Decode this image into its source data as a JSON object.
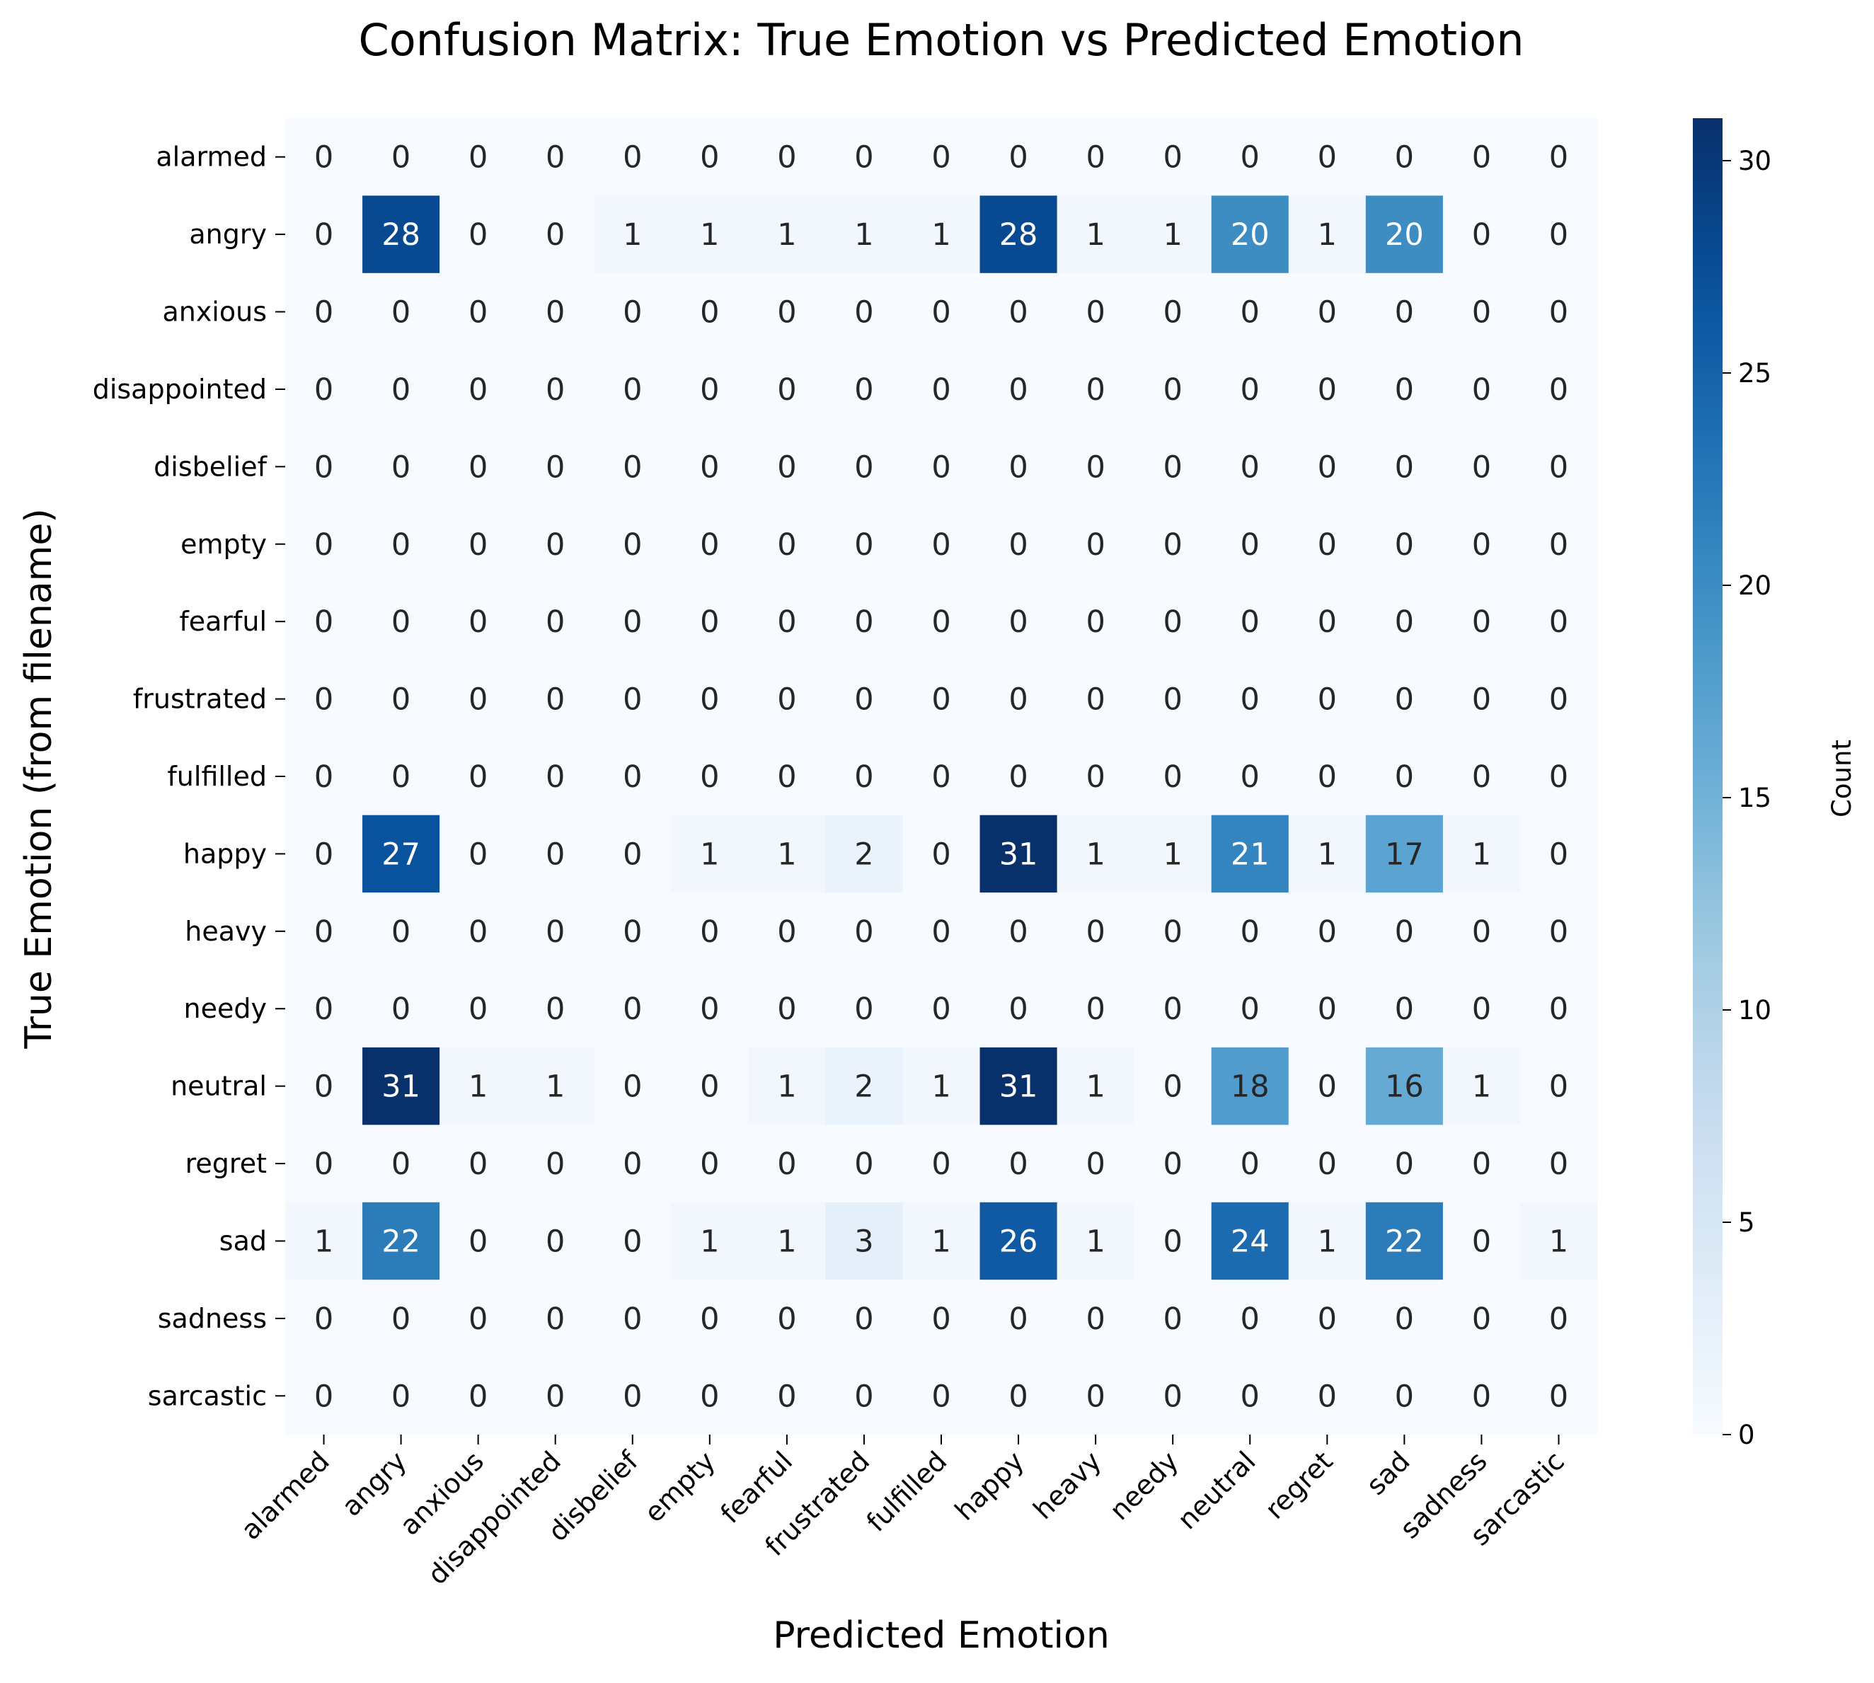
{
  "chart_data": {
    "type": "heatmap",
    "title": "Confusion Matrix: True Emotion vs Predicted Emotion",
    "xlabel": "Predicted Emotion",
    "ylabel": "True Emotion (from filename)",
    "x_categories": [
      "alarmed",
      "angry",
      "anxious",
      "disappointed",
      "disbelief",
      "empty",
      "fearful",
      "frustrated",
      "fulfilled",
      "happy",
      "heavy",
      "needy",
      "neutral",
      "regret",
      "sad",
      "sadness",
      "sarcastic"
    ],
    "y_categories": [
      "alarmed",
      "angry",
      "anxious",
      "disappointed",
      "disbelief",
      "empty",
      "fearful",
      "frustrated",
      "fulfilled",
      "happy",
      "heavy",
      "needy",
      "neutral",
      "regret",
      "sad",
      "sadness",
      "sarcastic"
    ],
    "values": [
      [
        0,
        0,
        0,
        0,
        0,
        0,
        0,
        0,
        0,
        0,
        0,
        0,
        0,
        0,
        0,
        0,
        0
      ],
      [
        0,
        28,
        0,
        0,
        1,
        1,
        1,
        1,
        1,
        28,
        1,
        1,
        20,
        1,
        20,
        0,
        0
      ],
      [
        0,
        0,
        0,
        0,
        0,
        0,
        0,
        0,
        0,
        0,
        0,
        0,
        0,
        0,
        0,
        0,
        0
      ],
      [
        0,
        0,
        0,
        0,
        0,
        0,
        0,
        0,
        0,
        0,
        0,
        0,
        0,
        0,
        0,
        0,
        0
      ],
      [
        0,
        0,
        0,
        0,
        0,
        0,
        0,
        0,
        0,
        0,
        0,
        0,
        0,
        0,
        0,
        0,
        0
      ],
      [
        0,
        0,
        0,
        0,
        0,
        0,
        0,
        0,
        0,
        0,
        0,
        0,
        0,
        0,
        0,
        0,
        0
      ],
      [
        0,
        0,
        0,
        0,
        0,
        0,
        0,
        0,
        0,
        0,
        0,
        0,
        0,
        0,
        0,
        0,
        0
      ],
      [
        0,
        0,
        0,
        0,
        0,
        0,
        0,
        0,
        0,
        0,
        0,
        0,
        0,
        0,
        0,
        0,
        0
      ],
      [
        0,
        0,
        0,
        0,
        0,
        0,
        0,
        0,
        0,
        0,
        0,
        0,
        0,
        0,
        0,
        0,
        0
      ],
      [
        0,
        27,
        0,
        0,
        0,
        1,
        1,
        2,
        0,
        31,
        1,
        1,
        21,
        1,
        17,
        1,
        0
      ],
      [
        0,
        0,
        0,
        0,
        0,
        0,
        0,
        0,
        0,
        0,
        0,
        0,
        0,
        0,
        0,
        0,
        0
      ],
      [
        0,
        0,
        0,
        0,
        0,
        0,
        0,
        0,
        0,
        0,
        0,
        0,
        0,
        0,
        0,
        0,
        0
      ],
      [
        0,
        31,
        1,
        1,
        0,
        0,
        1,
        2,
        1,
        31,
        1,
        0,
        18,
        0,
        16,
        1,
        0
      ],
      [
        0,
        0,
        0,
        0,
        0,
        0,
        0,
        0,
        0,
        0,
        0,
        0,
        0,
        0,
        0,
        0,
        0
      ],
      [
        1,
        22,
        0,
        0,
        0,
        1,
        1,
        3,
        1,
        26,
        1,
        0,
        24,
        1,
        22,
        0,
        1
      ],
      [
        0,
        0,
        0,
        0,
        0,
        0,
        0,
        0,
        0,
        0,
        0,
        0,
        0,
        0,
        0,
        0,
        0
      ],
      [
        0,
        0,
        0,
        0,
        0,
        0,
        0,
        0,
        0,
        0,
        0,
        0,
        0,
        0,
        0,
        0,
        0
      ]
    ],
    "colormap": "Blues",
    "vmin": 0,
    "vmax": 31,
    "colorbar_label": "Count",
    "colorbar_ticks": [
      "0",
      "5",
      "10",
      "15",
      "20",
      "25",
      "30"
    ],
    "annotated": true,
    "grid": false
  }
}
